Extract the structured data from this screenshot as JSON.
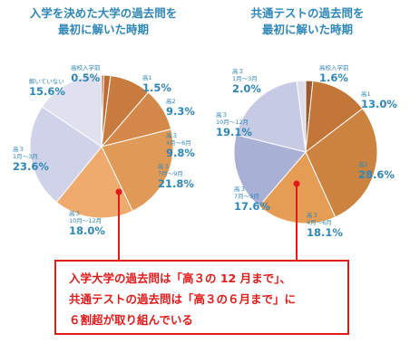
{
  "chart_data": [
    {
      "type": "pie",
      "title_lines": [
        "入学を決めた大学の過去問を",
        "最初に解いた時期"
      ],
      "slices": [
        {
          "label": "高校入学前",
          "value": 0.5,
          "display": "0.5%",
          "color": "#a95e2e"
        },
        {
          "label": "高1",
          "value": 1.5,
          "display": "1.5%",
          "color": "#bc6c34"
        },
        {
          "label": "高2",
          "value": 9.3,
          "display": "9.3%",
          "color": "#c77b3e"
        },
        {
          "label": "高３ 4月～6月",
          "value": 9.8,
          "display": "9.8%",
          "color": "#d4894a"
        },
        {
          "label": "高３ 7月～9月",
          "value": 21.8,
          "display": "21.8%",
          "color": "#e09a57"
        },
        {
          "label": "高３ 10月～12月",
          "value": 18.0,
          "display": "18.0%",
          "color": "#eeab6d"
        },
        {
          "label": "高３ 1月～3月",
          "value": 23.6,
          "display": "23.6%",
          "color": "#cfd2e8"
        },
        {
          "label": "解いていない",
          "value": 15.6,
          "display": "15.6%",
          "color": "#dfe1ef"
        }
      ]
    },
    {
      "type": "pie",
      "title_lines": [
        "共通テストの過去問を",
        "最初に解いた時期"
      ],
      "slices": [
        {
          "label": "高校入学前",
          "value": 1.6,
          "display": "1.6%",
          "color": "#9e5a2c"
        },
        {
          "label": "高1",
          "value": 13.0,
          "display": "13.0%",
          "color": "#c27638"
        },
        {
          "label": "高2",
          "value": 28.6,
          "display": "28.6%",
          "color": "#cc8340"
        },
        {
          "label": "高３ 4月～6月",
          "value": 18.1,
          "display": "18.1%",
          "color": "#e59c55"
        },
        {
          "label": "高３ 7月～9月",
          "value": 17.6,
          "display": "17.6%",
          "color": "#a9b0d6"
        },
        {
          "label": "高３ 10月～12月",
          "value": 19.1,
          "display": "19.1%",
          "color": "#c6cae4"
        },
        {
          "label": "高３ 1月～3月",
          "value": 2.0,
          "display": "2.0%",
          "color": "#dcdeee"
        }
      ]
    }
  ],
  "labels": {
    "left": {
      "s0": {
        "small": "高校入学前",
        "big": "0.5%"
      },
      "s1": {
        "small": "高1",
        "big": "1.5%"
      },
      "s2": {
        "small": "高2",
        "big": "9.3%"
      },
      "s3": {
        "small1": "高３",
        "small2": "4月～6月",
        "big": "9.8%"
      },
      "s4": {
        "small1": "高３",
        "small2": "7月～9月",
        "big": "21.8%"
      },
      "s5": {
        "small1": "高３",
        "small2": "10月～12月",
        "big": "18.0%"
      },
      "s6": {
        "small1": "高３",
        "small2": "1月～3月",
        "big": "23.6%"
      },
      "s7": {
        "small": "解いていない",
        "big": "15.6%"
      }
    },
    "right": {
      "s0": {
        "small": "高校入学前",
        "big": "1.6%"
      },
      "s1": {
        "small": "高1",
        "big": "13.0%"
      },
      "s2": {
        "small": "高2",
        "big": "28.6%"
      },
      "s3": {
        "small1": "高３",
        "small2": "4月～6月",
        "big": "18.1%"
      },
      "s4": {
        "small1": "高３",
        "small2": "7月～9月",
        "big": "17.6%"
      },
      "s5": {
        "small1": "高３",
        "small2": "10月～12月",
        "big": "19.1%"
      },
      "s6": {
        "small1": "高３",
        "small2": "1月～3月",
        "big": "2.0%"
      }
    }
  },
  "note": {
    "lines": [
      "入学大学の過去問は「高３の 12 月まで」、",
      "共通テストの過去問は「高３の６月まで」に",
      "６割超が取り組んでいる"
    ]
  },
  "colors": {
    "title": "#2f86b8",
    "callout": "#e11b1b"
  }
}
